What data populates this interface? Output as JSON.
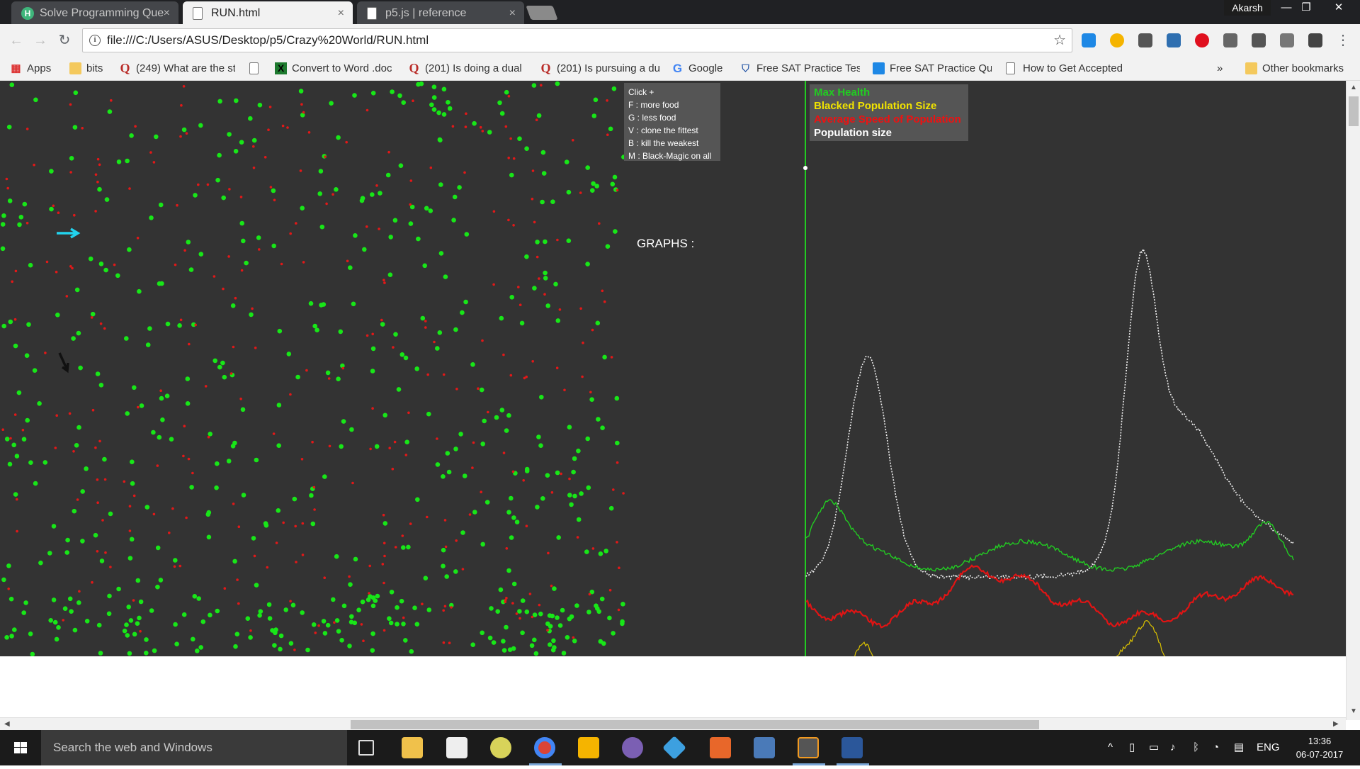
{
  "browser": {
    "tabs": [
      {
        "label": "Solve Programming Que",
        "favicon": "hackerearth-icon",
        "active": false
      },
      {
        "label": "RUN.html",
        "favicon": "document-icon",
        "active": true
      },
      {
        "label": "p5.js | reference",
        "favicon": "document-icon",
        "active": false
      }
    ],
    "close_glyph": "×",
    "user_name": "Akarsh",
    "url": "file:///C:/Users/ASUS/Desktop/p5/Crazy%20World/RUN.html"
  },
  "bookmarks": {
    "items": [
      {
        "label": "Apps",
        "icon": "apps-grid-icon"
      },
      {
        "label": "bits",
        "icon": "folder-icon"
      },
      {
        "label": "(249) What are the st",
        "icon": "quora-icon"
      },
      {
        "label": "",
        "icon": "page-icon"
      },
      {
        "label": "Convert to Word .doc",
        "icon": "convert-icon"
      },
      {
        "label": "(201) Is doing a dual",
        "icon": "quora-icon"
      },
      {
        "label": "(201) Is pursuing a du",
        "icon": "quora-icon"
      },
      {
        "label": "Google",
        "icon": "google-icon"
      },
      {
        "label": "Free SAT Practice Test",
        "icon": "shield-icon"
      },
      {
        "label": "Free SAT Practice Que",
        "icon": "sat-icon"
      },
      {
        "label": "How to Get Accepted",
        "icon": "page-icon"
      }
    ],
    "overflow": "»",
    "other": "Other bookmarks"
  },
  "sketch": {
    "help_lines": [
      "Click +",
      "F : more food",
      "G : less food",
      "V : clone the fittest",
      "B : kill the weakest",
      "M : Black-Magic on all"
    ],
    "graphs_label": "GRAPHS :",
    "legend": [
      {
        "label": "Max Health",
        "color": "#22cc22"
      },
      {
        "label": "Blacked Population Size",
        "color": "#f1e300"
      },
      {
        "label": "Average Speed of Population",
        "color": "#ee1111"
      },
      {
        "label": "Population size",
        "color": "#ffffff"
      }
    ]
  },
  "taskbar": {
    "search_placeholder": "Search the web and Windows",
    "language": "ENG",
    "time": "13:36",
    "date": "06-07-2017"
  }
}
